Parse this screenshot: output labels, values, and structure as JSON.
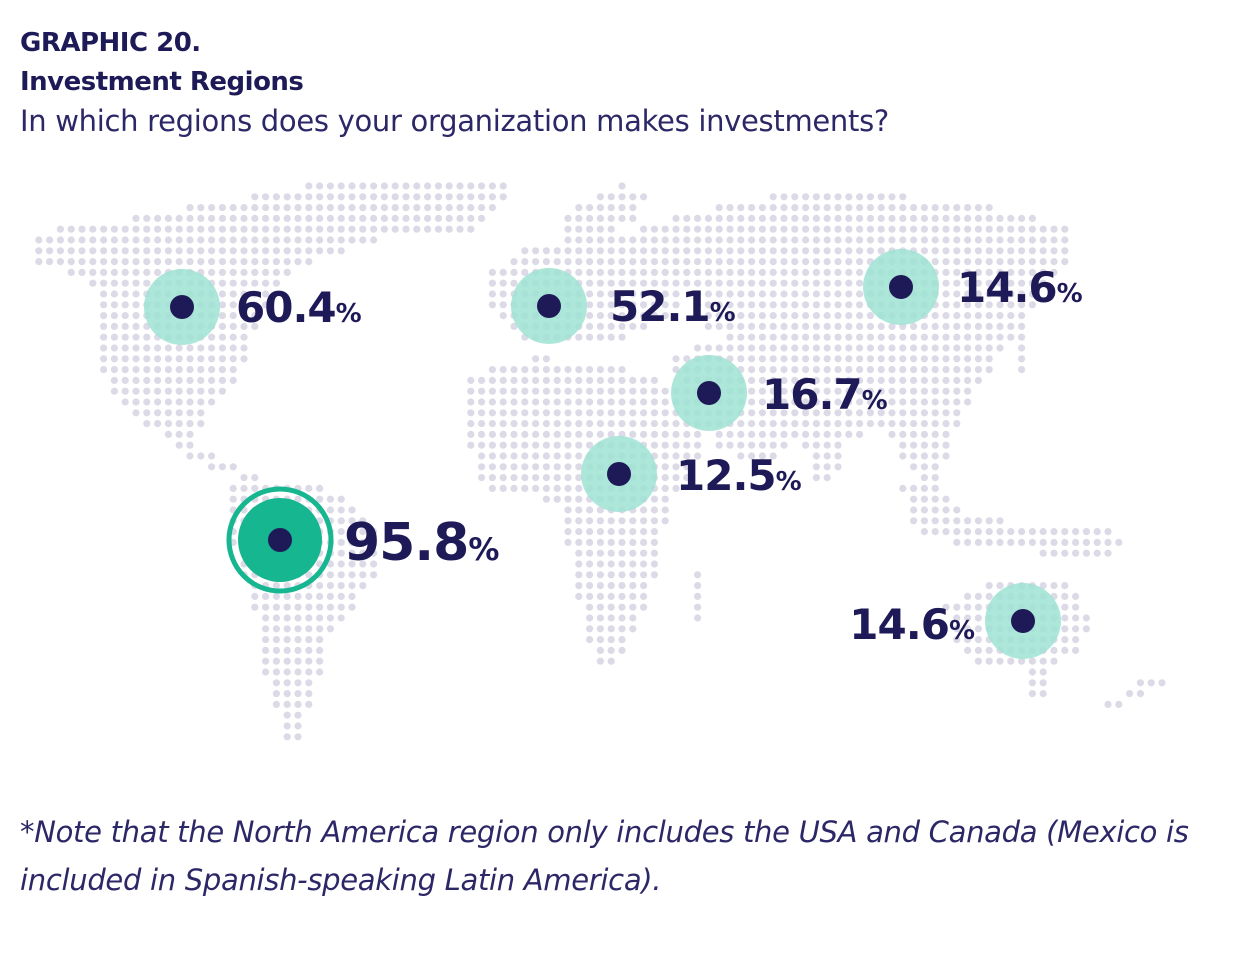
{
  "header": {
    "graphic_number": "GRAPHIC 20.",
    "title": "Investment Regions",
    "subtitle": "In which regions does your organization makes investments?"
  },
  "colors": {
    "navy": "#1e1a57",
    "halo": "#9fe3d4",
    "highlight": "#16b690",
    "map_dots": "#dcdae6"
  },
  "regions": [
    {
      "id": "usa-canada",
      "value": "60.4",
      "unit": "%",
      "highlight": false
    },
    {
      "id": "spanish-speaking-latin-america",
      "value": "95.8",
      "unit": "%",
      "highlight": true
    },
    {
      "id": "europe",
      "value": "52.1",
      "unit": "%",
      "highlight": false
    },
    {
      "id": "middle-east",
      "value": "16.7",
      "unit": "%",
      "highlight": false
    },
    {
      "id": "africa",
      "value": "12.5",
      "unit": "%",
      "highlight": false
    },
    {
      "id": "asia",
      "value": "14.6",
      "unit": "%",
      "highlight": false
    },
    {
      "id": "oceania",
      "value": "14.6",
      "unit": "%",
      "highlight": false
    }
  ],
  "note": "*Note that the North America region only includes the USA and Canada (Mexico is included in Spanish-speaking Latin America)."
}
